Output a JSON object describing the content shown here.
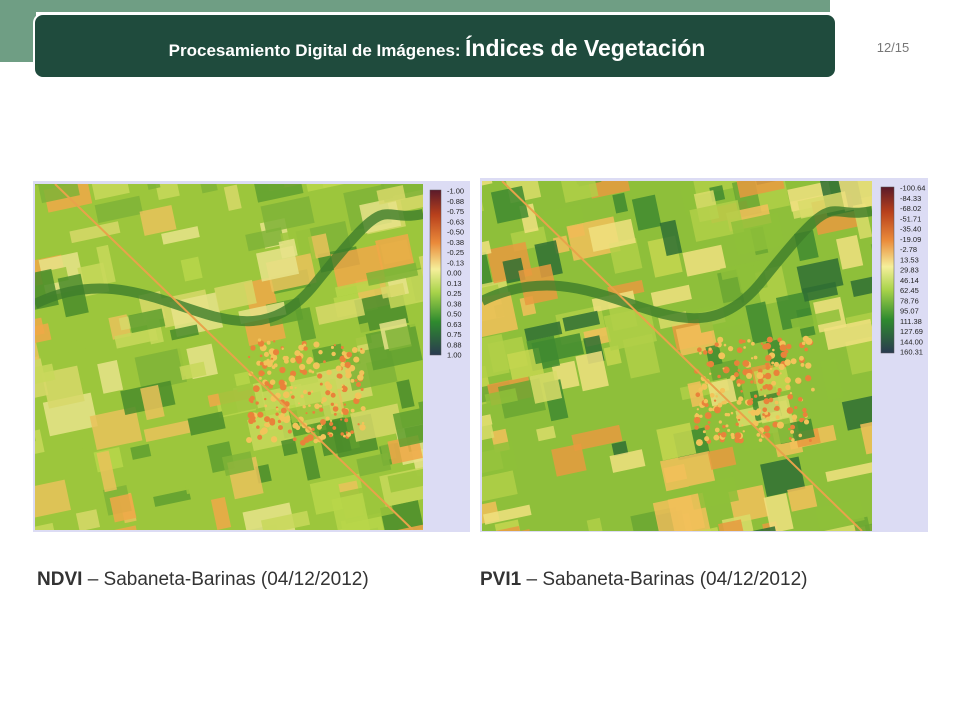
{
  "header": {
    "title_part1": "Procesamiento Digital de Imágenes:",
    "title_part2": "Índices de Vegetación",
    "page_number": "12/15"
  },
  "panels": [
    {
      "legend_labels": [
        "-1.00",
        "-0.88",
        "-0.75",
        "-0.63",
        "-0.50",
        "-0.38",
        "-0.25",
        "-0.13",
        "0.00",
        "0.13",
        "0.25",
        "0.38",
        "0.50",
        "0.63",
        "0.75",
        "0.88",
        "1.00"
      ],
      "caption_bold": "NDVI",
      "caption_rest": "– Sabaneta-Barinas  (04/12/2012)"
    },
    {
      "legend_labels": [
        "-100.64",
        "-84.33",
        "-68.02",
        "-51.71",
        "-35.40",
        "-19.09",
        "-2.78",
        "13.53",
        "29.83",
        "46.14",
        "62.45",
        "78.76",
        "95.07",
        "111.38",
        "127.69",
        "144.00",
        "160.31"
      ],
      "caption_bold": "PVI1",
      "caption_rest": "– Sabaneta-Barinas  (04/12/2012)"
    }
  ]
}
